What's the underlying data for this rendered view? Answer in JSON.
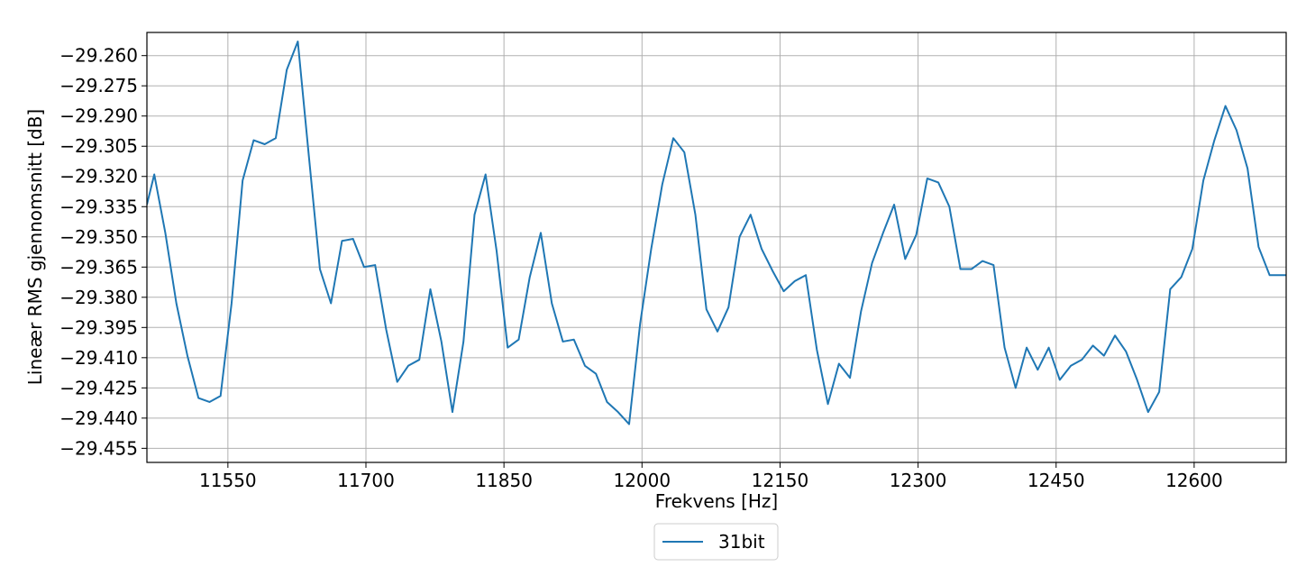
{
  "chart_data": {
    "type": "line",
    "title": "",
    "xlabel": "Frekvens [Hz]",
    "ylabel": "Lineær RMS gjennomsnitt [dB]",
    "xlim": [
      11462,
      12700
    ],
    "ylim": [
      -29.462,
      -29.2485
    ],
    "grid": true,
    "legend_position": "bottom-center",
    "x_ticks": [
      11550,
      11700,
      11850,
      12000,
      12150,
      12300,
      12450,
      12600
    ],
    "y_ticks": [
      -29.26,
      -29.275,
      -29.29,
      -29.305,
      -29.32,
      -29.335,
      -29.35,
      -29.365,
      -29.38,
      -29.395,
      -29.41,
      -29.425,
      -29.44,
      -29.455
    ],
    "y_tick_labels": [
      "−29.260",
      "−29.275",
      "−29.290",
      "−29.305",
      "−29.320",
      "−29.335",
      "−29.350",
      "−29.365",
      "−29.380",
      "−29.395",
      "−29.410",
      "−29.425",
      "−29.440",
      "−29.455"
    ],
    "series": [
      {
        "name": "31bit",
        "color": "#1f77b4",
        "x": [
          11462,
          11470,
          11482,
          11494,
          11506,
          11518,
          11530,
          11542,
          11554,
          11566,
          11578,
          11590,
          11602,
          11614,
          11626,
          11638,
          11650,
          11662,
          11674,
          11686,
          11698,
          11710,
          11722,
          11734,
          11746,
          11758,
          11770,
          11782,
          11794,
          11806,
          11818,
          11830,
          11842,
          11854,
          11866,
          11878,
          11890,
          11902,
          11914,
          11926,
          11938,
          11950,
          11962,
          11974,
          11986,
          11998,
          12010,
          12022,
          12034,
          12046,
          12058,
          12070,
          12082,
          12094,
          12106,
          12118,
          12130,
          12142,
          12154,
          12166,
          12178,
          12190,
          12202,
          12214,
          12226,
          12238,
          12250,
          12262,
          12274,
          12286,
          12298,
          12310,
          12322,
          12334,
          12346,
          12358,
          12370,
          12382,
          12394,
          12406,
          12418,
          12430,
          12442,
          12454,
          12466,
          12478,
          12490,
          12502,
          12514,
          12526,
          12538,
          12550,
          12562,
          12574,
          12586,
          12598,
          12610,
          12622,
          12634,
          12646,
          12658,
          12670,
          12682,
          12694,
          12700
        ],
        "values": [
          -29.334,
          -29.319,
          -29.348,
          -29.383,
          -29.409,
          -29.43,
          -29.432,
          -29.429,
          -29.383,
          -29.322,
          -29.302,
          -29.304,
          -29.301,
          -29.267,
          -29.253,
          -29.31,
          -29.366,
          -29.383,
          -29.352,
          -29.351,
          -29.365,
          -29.364,
          -29.396,
          -29.422,
          -29.414,
          -29.411,
          -29.376,
          -29.402,
          -29.437,
          -29.402,
          -29.339,
          -29.319,
          -29.357,
          -29.405,
          -29.401,
          -29.37,
          -29.348,
          -29.383,
          -29.402,
          -29.401,
          -29.414,
          -29.418,
          -29.432,
          -29.437,
          -29.443,
          -29.393,
          -29.356,
          -29.324,
          -29.301,
          -29.308,
          -29.339,
          -29.386,
          -29.397,
          -29.385,
          -29.35,
          -29.339,
          -29.356,
          -29.367,
          -29.377,
          -29.372,
          -29.369,
          -29.406,
          -29.433,
          -29.413,
          -29.42,
          -29.387,
          -29.363,
          -29.348,
          -29.334,
          -29.361,
          -29.349,
          -29.321,
          -29.323,
          -29.335,
          -29.366,
          -29.366,
          -29.362,
          -29.364,
          -29.405,
          -29.425,
          -29.405,
          -29.416,
          -29.405,
          -29.421,
          -29.414,
          -29.411,
          -29.404,
          -29.409,
          -29.399,
          -29.407,
          -29.421,
          -29.437,
          -29.427,
          -29.376,
          -29.37,
          -29.356,
          -29.322,
          -29.302,
          -29.285,
          -29.297,
          -29.316,
          -29.355,
          -29.369,
          -29.369,
          -29.369
        ]
      }
    ]
  }
}
